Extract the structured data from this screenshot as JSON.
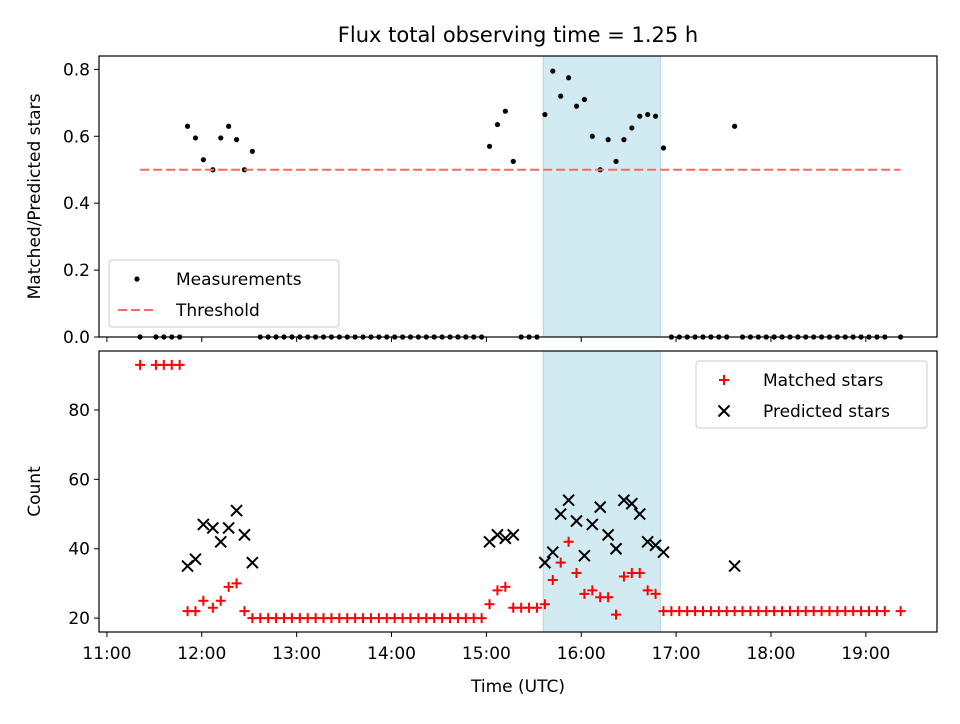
{
  "figure": {
    "title": "Flux total observing time = 1.25 h",
    "colors": {
      "measurements": "#000000",
      "threshold": "#ff6666",
      "matched": "#ff0000",
      "predicted": "#000000",
      "highlight_band": "#add8e6"
    }
  },
  "chart_data": [
    {
      "type": "scatter",
      "panel": "top",
      "xlabel": "",
      "ylabel": "Matched/Predicted stars",
      "xlim": [
        "10:55",
        "19:45"
      ],
      "ylim": [
        0,
        0.84
      ],
      "yticks": [
        "0.0",
        "0.2",
        "0.4",
        "0.6",
        "0.8"
      ],
      "grid": false,
      "legend": "lower-left",
      "highlight_band": {
        "x0": "15:36",
        "x1": "16:50"
      },
      "series": [
        {
          "name": "Measurements",
          "marker": "dot",
          "points": [
            [
              "11:21",
              0
            ],
            [
              "11:31",
              0
            ],
            [
              "11:36",
              0
            ],
            [
              "11:41",
              0
            ],
            [
              "11:46",
              0
            ],
            [
              "11:51",
              0.63
            ],
            [
              "11:56",
              0.595
            ],
            [
              "12:01",
              0.53
            ],
            [
              "12:07",
              0.5
            ],
            [
              "12:12",
              0.595
            ],
            [
              "12:17",
              0.63
            ],
            [
              "12:22",
              0.59
            ],
            [
              "12:27",
              0.5
            ],
            [
              "12:32",
              0.555
            ],
            [
              "12:37",
              0
            ],
            [
              "12:42",
              0
            ],
            [
              "12:47",
              0
            ],
            [
              "12:52",
              0
            ],
            [
              "12:57",
              0
            ],
            [
              "13:02",
              0
            ],
            [
              "13:07",
              0
            ],
            [
              "13:12",
              0
            ],
            [
              "13:17",
              0
            ],
            [
              "13:22",
              0
            ],
            [
              "13:27",
              0
            ],
            [
              "13:32",
              0
            ],
            [
              "13:37",
              0
            ],
            [
              "13:42",
              0
            ],
            [
              "13:47",
              0
            ],
            [
              "13:52",
              0
            ],
            [
              "13:57",
              0
            ],
            [
              "14:02",
              0
            ],
            [
              "14:07",
              0
            ],
            [
              "14:12",
              0
            ],
            [
              "14:17",
              0
            ],
            [
              "14:22",
              0
            ],
            [
              "14:27",
              0
            ],
            [
              "14:32",
              0
            ],
            [
              "14:37",
              0
            ],
            [
              "14:42",
              0
            ],
            [
              "14:47",
              0
            ],
            [
              "14:52",
              0
            ],
            [
              "14:57",
              0
            ],
            [
              "15:02",
              0.57
            ],
            [
              "15:07",
              0.635
            ],
            [
              "15:12",
              0.675
            ],
            [
              "15:17",
              0.525
            ],
            [
              "15:22",
              0
            ],
            [
              "15:27",
              0
            ],
            [
              "15:32",
              0
            ],
            [
              "15:37",
              0.665
            ],
            [
              "15:42",
              0.795
            ],
            [
              "15:47",
              0.72
            ],
            [
              "15:52",
              0.775
            ],
            [
              "15:57",
              0.69
            ],
            [
              "16:02",
              0.71
            ],
            [
              "16:07",
              0.6
            ],
            [
              "16:12",
              0.5
            ],
            [
              "16:17",
              0.59
            ],
            [
              "16:22",
              0.525
            ],
            [
              "16:27",
              0.59
            ],
            [
              "16:32",
              0.625
            ],
            [
              "16:37",
              0.66
            ],
            [
              "16:42",
              0.665
            ],
            [
              "16:47",
              0.66
            ],
            [
              "16:52",
              0.565
            ],
            [
              "16:57",
              0
            ],
            [
              "17:02",
              0
            ],
            [
              "17:07",
              0
            ],
            [
              "17:12",
              0
            ],
            [
              "17:17",
              0
            ],
            [
              "17:22",
              0
            ],
            [
              "17:27",
              0
            ],
            [
              "17:32",
              0
            ],
            [
              "17:37",
              0.63
            ],
            [
              "17:42",
              0
            ],
            [
              "17:47",
              0
            ],
            [
              "17:52",
              0
            ],
            [
              "17:57",
              0
            ],
            [
              "18:02",
              0
            ],
            [
              "18:07",
              0
            ],
            [
              "18:12",
              0
            ],
            [
              "18:17",
              0
            ],
            [
              "18:22",
              0
            ],
            [
              "18:27",
              0
            ],
            [
              "18:32",
              0
            ],
            [
              "18:37",
              0
            ],
            [
              "18:42",
              0
            ],
            [
              "18:47",
              0
            ],
            [
              "18:52",
              0
            ],
            [
              "18:57",
              0
            ],
            [
              "19:02",
              0
            ],
            [
              "19:07",
              0
            ],
            [
              "19:12",
              0
            ],
            [
              "19:22",
              0
            ]
          ]
        },
        {
          "name": "Threshold",
          "marker": "dashed-line",
          "points": [
            [
              "11:21",
              0.5
            ],
            [
              "19:22",
              0.5
            ]
          ]
        }
      ]
    },
    {
      "type": "scatter",
      "panel": "bottom",
      "xlabel": "Time (UTC)",
      "ylabel": "Count",
      "xlim": [
        "10:55",
        "19:45"
      ],
      "ylim": [
        16,
        97
      ],
      "xticks": [
        "11:00",
        "12:00",
        "13:00",
        "14:00",
        "15:00",
        "16:00",
        "17:00",
        "18:00",
        "19:00"
      ],
      "yticks": [
        "20",
        "40",
        "60",
        "80"
      ],
      "grid": false,
      "legend": "top-right",
      "highlight_band": {
        "x0": "15:36",
        "x1": "16:50"
      },
      "series": [
        {
          "name": "Matched stars",
          "marker": "plus",
          "points": [
            [
              "11:21",
              93
            ],
            [
              "11:31",
              93
            ],
            [
              "11:36",
              93
            ],
            [
              "11:41",
              93
            ],
            [
              "11:46",
              93
            ],
            [
              "11:51",
              22
            ],
            [
              "11:56",
              22
            ],
            [
              "12:01",
              25
            ],
            [
              "12:07",
              23
            ],
            [
              "12:12",
              25
            ],
            [
              "12:17",
              29
            ],
            [
              "12:22",
              30
            ],
            [
              "12:27",
              22
            ],
            [
              "12:32",
              20
            ],
            [
              "12:37",
              20
            ],
            [
              "12:42",
              20
            ],
            [
              "12:47",
              20
            ],
            [
              "12:52",
              20
            ],
            [
              "12:57",
              20
            ],
            [
              "13:02",
              20
            ],
            [
              "13:07",
              20
            ],
            [
              "13:12",
              20
            ],
            [
              "13:17",
              20
            ],
            [
              "13:22",
              20
            ],
            [
              "13:27",
              20
            ],
            [
              "13:32",
              20
            ],
            [
              "13:37",
              20
            ],
            [
              "13:42",
              20
            ],
            [
              "13:47",
              20
            ],
            [
              "13:52",
              20
            ],
            [
              "13:57",
              20
            ],
            [
              "14:02",
              20
            ],
            [
              "14:07",
              20
            ],
            [
              "14:12",
              20
            ],
            [
              "14:17",
              20
            ],
            [
              "14:22",
              20
            ],
            [
              "14:27",
              20
            ],
            [
              "14:32",
              20
            ],
            [
              "14:37",
              20
            ],
            [
              "14:42",
              20
            ],
            [
              "14:47",
              20
            ],
            [
              "14:52",
              20
            ],
            [
              "14:57",
              20
            ],
            [
              "15:02",
              24
            ],
            [
              "15:07",
              28
            ],
            [
              "15:12",
              29
            ],
            [
              "15:17",
              23
            ],
            [
              "15:22",
              23
            ],
            [
              "15:27",
              23
            ],
            [
              "15:32",
              23
            ],
            [
              "15:37",
              24
            ],
            [
              "15:42",
              31
            ],
            [
              "15:47",
              36
            ],
            [
              "15:52",
              42
            ],
            [
              "15:57",
              33
            ],
            [
              "16:02",
              27
            ],
            [
              "16:07",
              28
            ],
            [
              "16:12",
              26
            ],
            [
              "16:17",
              26
            ],
            [
              "16:22",
              21
            ],
            [
              "16:27",
              32
            ],
            [
              "16:32",
              33
            ],
            [
              "16:37",
              33
            ],
            [
              "16:42",
              28
            ],
            [
              "16:47",
              27
            ],
            [
              "16:52",
              22
            ],
            [
              "16:57",
              22
            ],
            [
              "17:02",
              22
            ],
            [
              "17:07",
              22
            ],
            [
              "17:12",
              22
            ],
            [
              "17:17",
              22
            ],
            [
              "17:22",
              22
            ],
            [
              "17:27",
              22
            ],
            [
              "17:32",
              22
            ],
            [
              "17:37",
              22
            ],
            [
              "17:42",
              22
            ],
            [
              "17:47",
              22
            ],
            [
              "17:52",
              22
            ],
            [
              "17:57",
              22
            ],
            [
              "18:02",
              22
            ],
            [
              "18:07",
              22
            ],
            [
              "18:12",
              22
            ],
            [
              "18:17",
              22
            ],
            [
              "18:22",
              22
            ],
            [
              "18:27",
              22
            ],
            [
              "18:32",
              22
            ],
            [
              "18:37",
              22
            ],
            [
              "18:42",
              22
            ],
            [
              "18:47",
              22
            ],
            [
              "18:52",
              22
            ],
            [
              "18:57",
              22
            ],
            [
              "19:02",
              22
            ],
            [
              "19:07",
              22
            ],
            [
              "19:12",
              22
            ],
            [
              "19:22",
              22
            ]
          ]
        },
        {
          "name": "Predicted stars",
          "marker": "x",
          "points": [
            [
              "11:51",
              35
            ],
            [
              "11:56",
              37
            ],
            [
              "12:01",
              47
            ],
            [
              "12:07",
              46
            ],
            [
              "12:12",
              42
            ],
            [
              "12:17",
              46
            ],
            [
              "12:22",
              51
            ],
            [
              "12:27",
              44
            ],
            [
              "12:32",
              36
            ],
            [
              "15:02",
              42
            ],
            [
              "15:07",
              44
            ],
            [
              "15:12",
              43
            ],
            [
              "15:17",
              44
            ],
            [
              "15:37",
              36
            ],
            [
              "15:42",
              39
            ],
            [
              "15:47",
              50
            ],
            [
              "15:52",
              54
            ],
            [
              "15:57",
              48
            ],
            [
              "16:02",
              38
            ],
            [
              "16:07",
              47
            ],
            [
              "16:12",
              52
            ],
            [
              "16:17",
              44
            ],
            [
              "16:22",
              40
            ],
            [
              "16:27",
              54
            ],
            [
              "16:32",
              53
            ],
            [
              "16:37",
              50
            ],
            [
              "16:42",
              42
            ],
            [
              "16:47",
              41
            ],
            [
              "16:52",
              39
            ],
            [
              "17:37",
              35
            ]
          ]
        }
      ]
    }
  ]
}
